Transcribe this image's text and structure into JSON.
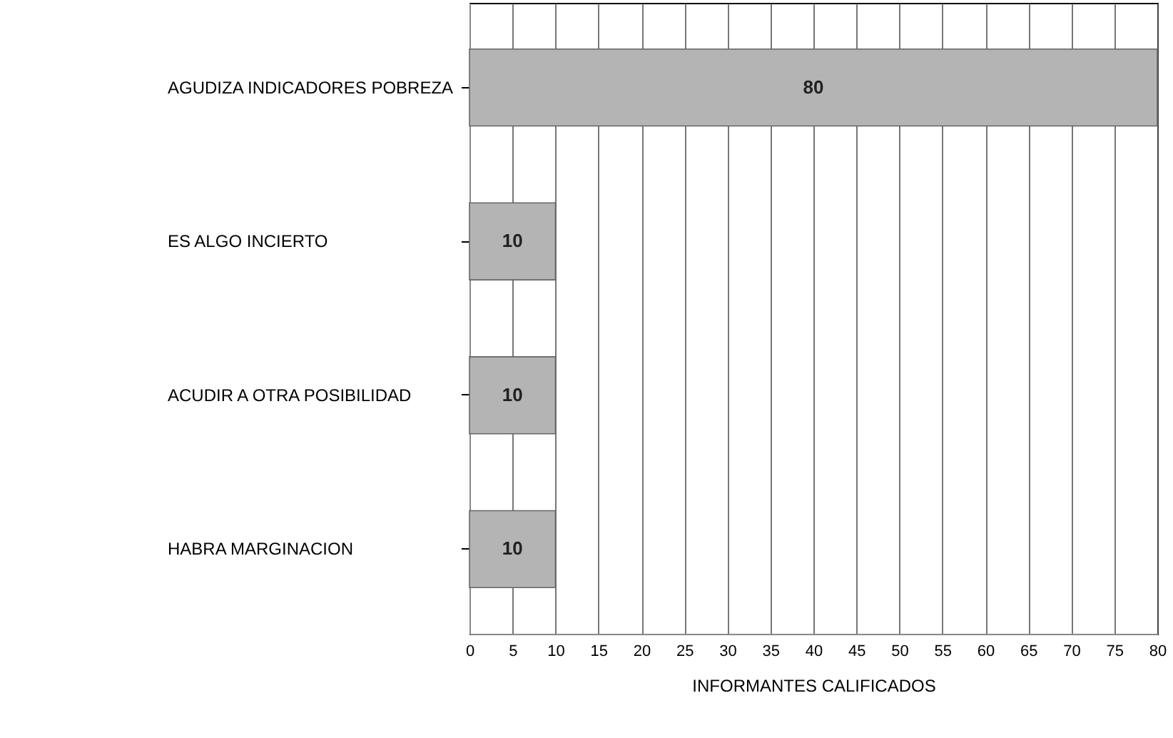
{
  "chart_data": {
    "type": "bar",
    "orientation": "horizontal",
    "xlabel": "INFORMANTES CALIFICADOS",
    "categories": [
      "AGUDIZA INDICADORES POBREZA",
      "ES ALGO INCIERTO",
      "ACUDIR A OTRA POSIBILIDAD",
      "HABRA MARGINACION"
    ],
    "values": [
      80,
      10,
      10,
      10
    ],
    "color": "#b4b4b4",
    "xlim": [
      0,
      80
    ],
    "xticks": [
      0,
      5,
      10,
      15,
      20,
      25,
      30,
      35,
      40,
      45,
      50,
      55,
      60,
      65,
      70,
      75,
      80
    ],
    "grid": "x",
    "data_labels": true
  }
}
